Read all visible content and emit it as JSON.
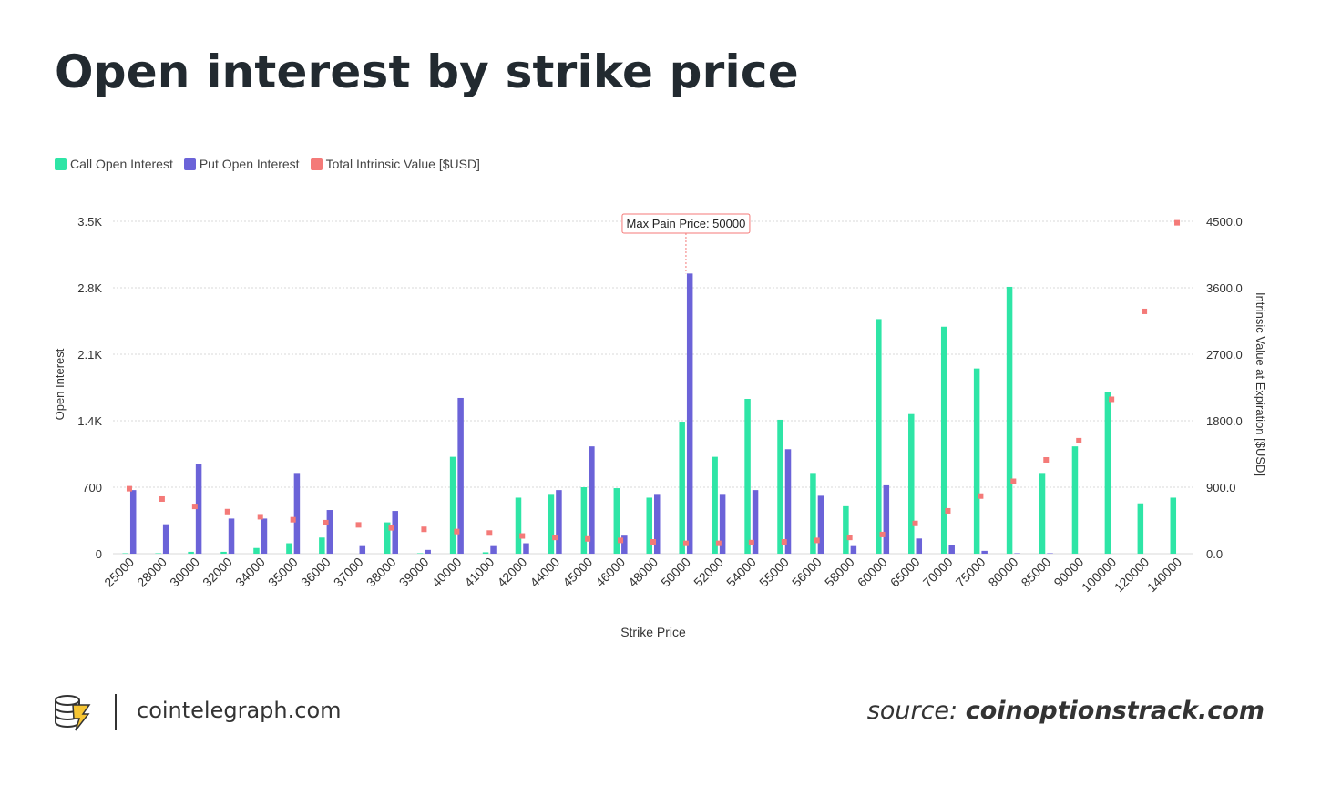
{
  "page": {
    "title": "Open interest by strike price",
    "site": "cointelegraph.com",
    "source_prefix": "source:",
    "source_name": "coinoptionstrack.com"
  },
  "colors": {
    "call": "#2ee5a6",
    "put": "#6b63d8",
    "intrinsic": "#f47a78",
    "grid": "#d8d8d8"
  },
  "chart_data": {
    "type": "bar",
    "title": "Open interest by strike price",
    "xlabel": "Strike Price",
    "ylabel": "Open Interest",
    "y2label": "Intrinsic Value at Expiration [$USD]",
    "ylim": [
      0,
      3500
    ],
    "y2lim": [
      0,
      4500
    ],
    "y_ticks": [
      "0",
      "700",
      "1.4K",
      "2.1K",
      "2.8K",
      "3.5K"
    ],
    "y_tick_values": [
      0,
      700,
      1400,
      2100,
      2800,
      3500
    ],
    "y2_ticks": [
      "0.0",
      "900.0",
      "1800.0",
      "2700.0",
      "3600.0",
      "4500.0"
    ],
    "y2_tick_values": [
      0,
      900,
      1800,
      2700,
      3600,
      4500
    ],
    "legend": [
      "Call Open Interest",
      "Put Open Interest",
      "Total Intrinsic Value [$USD]"
    ],
    "categories": [
      "25000",
      "28000",
      "30000",
      "32000",
      "34000",
      "35000",
      "36000",
      "37000",
      "38000",
      "39000",
      "40000",
      "41000",
      "42000",
      "44000",
      "45000",
      "46000",
      "48000",
      "50000",
      "52000",
      "54000",
      "55000",
      "56000",
      "58000",
      "60000",
      "65000",
      "70000",
      "75000",
      "80000",
      "85000",
      "90000",
      "100000",
      "120000",
      "140000"
    ],
    "series": [
      {
        "name": "Call Open Interest",
        "values": [
          5,
          5,
          20,
          20,
          60,
          110,
          170,
          0,
          330,
          5,
          1020,
          15,
          590,
          620,
          700,
          690,
          590,
          1390,
          1020,
          1630,
          1410,
          850,
          500,
          2470,
          1470,
          2390,
          1950,
          2810,
          850,
          1130,
          1700,
          530,
          590
        ]
      },
      {
        "name": "Put Open Interest",
        "values": [
          670,
          310,
          940,
          370,
          370,
          850,
          460,
          80,
          450,
          40,
          1640,
          80,
          110,
          670,
          1130,
          190,
          620,
          2950,
          620,
          670,
          1100,
          610,
          80,
          720,
          160,
          90,
          30,
          5,
          5,
          0,
          0,
          0,
          0
        ]
      },
      {
        "name": "Total Intrinsic Value [$USD]",
        "axis": "right",
        "values": [
          880,
          740,
          640,
          570,
          500,
          460,
          420,
          390,
          350,
          330,
          300,
          280,
          240,
          220,
          200,
          180,
          160,
          140,
          140,
          150,
          160,
          180,
          220,
          260,
          410,
          580,
          780,
          980,
          1270,
          1530,
          2090,
          3280,
          4480
        ]
      }
    ],
    "annotation": {
      "label": "Max Pain Price: 50000",
      "category": "50000"
    }
  }
}
